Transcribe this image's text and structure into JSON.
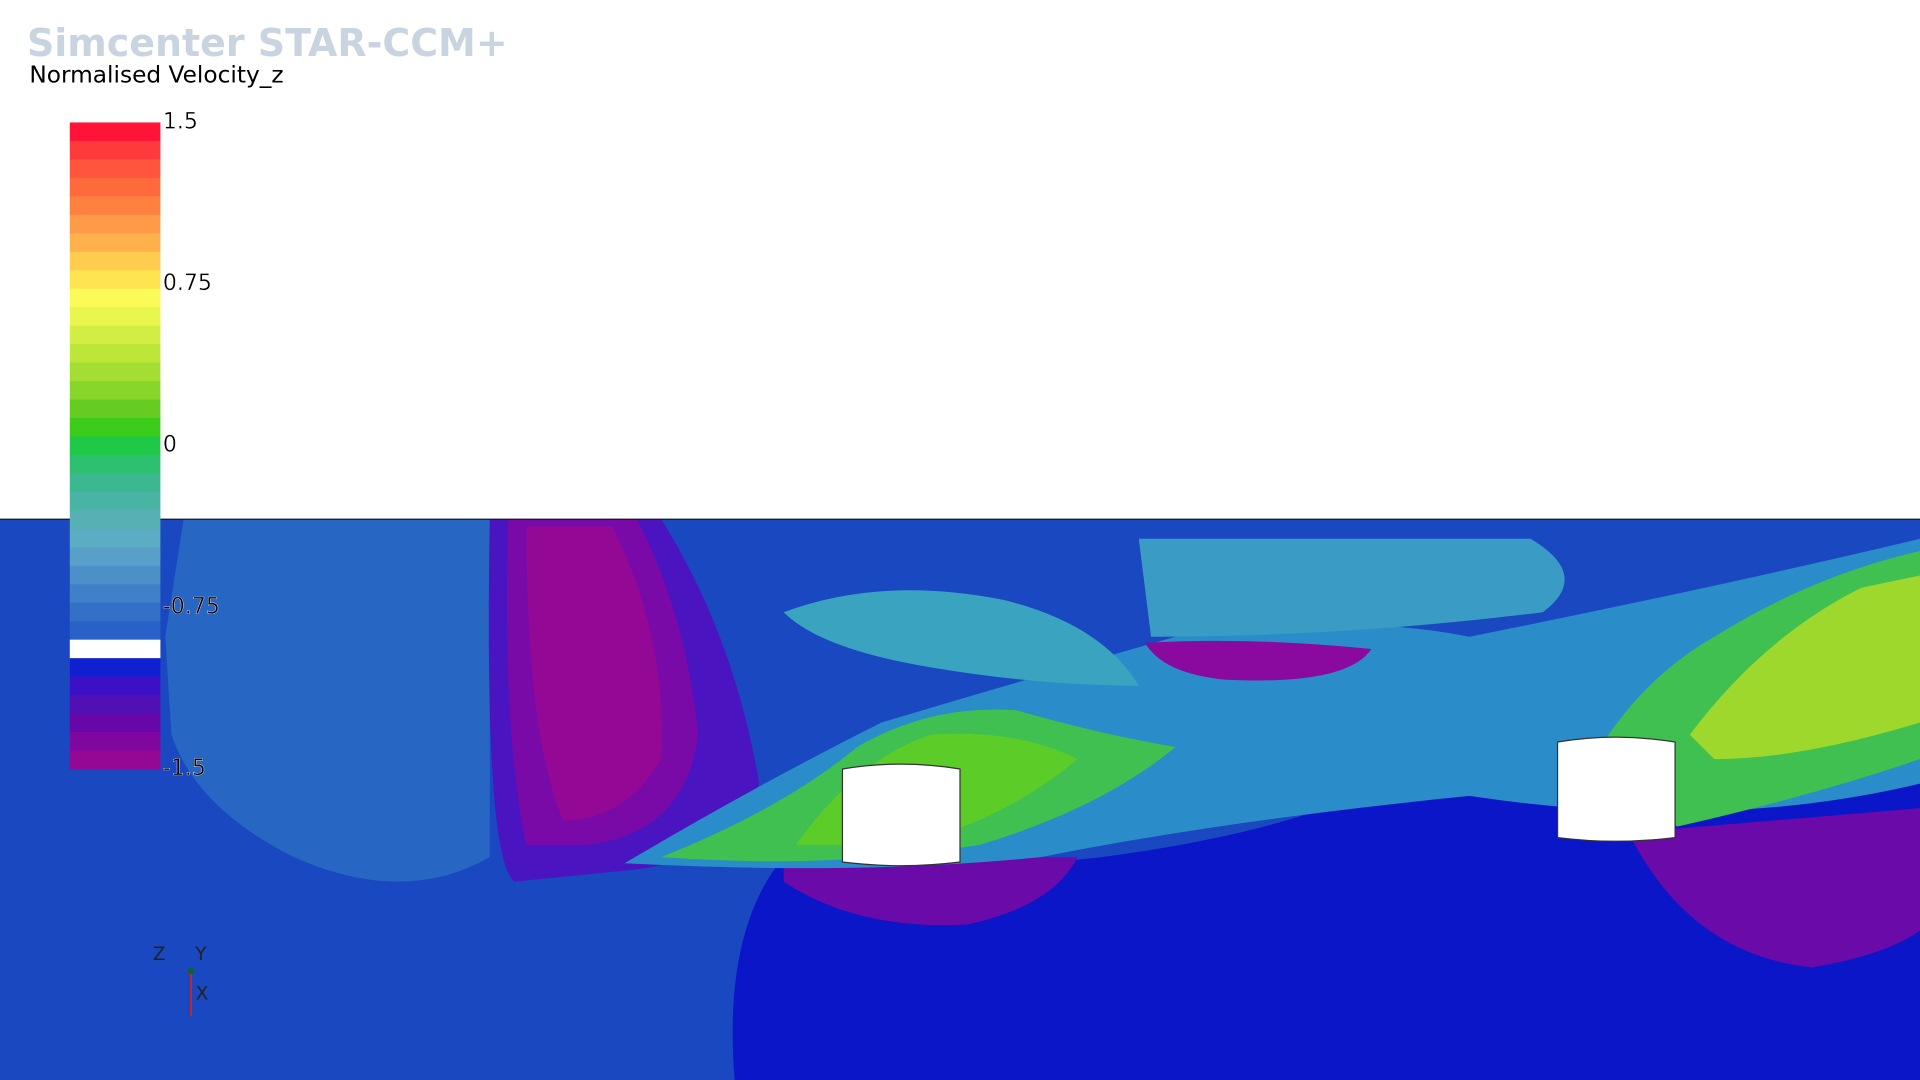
{
  "brand": "Simcenter STAR-CCM+",
  "colorbar": {
    "title": "Normalised Velocity_z",
    "range": [
      -1.5,
      1.5
    ],
    "ticks": [
      1.5,
      0.75,
      0,
      -0.75,
      -1.5
    ],
    "colors": [
      "#ff1438",
      "#ff3a3c",
      "#ff553c",
      "#ff6a3c",
      "#ff8040",
      "#ff9a48",
      "#ffb24c",
      "#ffcc50",
      "#ffe452",
      "#fafa58",
      "#e8f64e",
      "#d2ee44",
      "#bce63a",
      "#a4de32",
      "#88d62a",
      "#66cc22",
      "#3ccc1c",
      "#20c848",
      "#2cc070",
      "#3cb890",
      "#4ab4a4",
      "#56b0b4",
      "#5cacc4",
      "#58a0c8",
      "#4c90c8",
      "#4080c8",
      "#3470c8",
      "#2862c8",
      "#ffffff",
      "#1020d0",
      "#3c10c4",
      "#5010b4",
      "#6608a8",
      "#8006a0",
      "#940896"
    ]
  },
  "triad": {
    "labels": [
      "Z",
      "Y",
      "X"
    ]
  }
}
